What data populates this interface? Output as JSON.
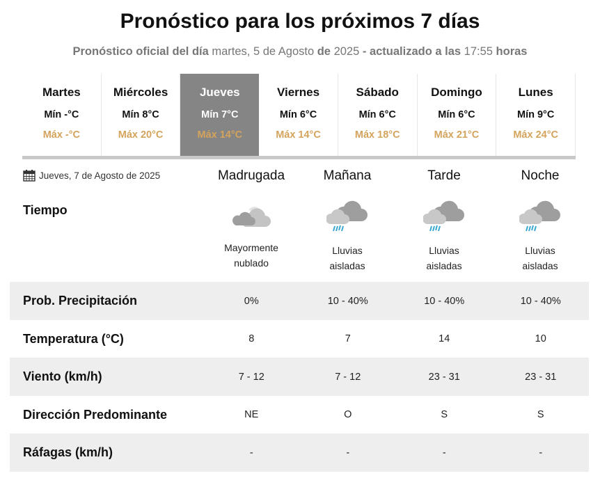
{
  "title": "Pronóstico para los próximos 7 días",
  "subtitle": {
    "p1": "Pronóstico oficial del día",
    "p2": " martes, 5 de Agosto ",
    "p3": "de",
    "p4": " 2025 ",
    "p5": "- actualizado a las",
    "p6": " 17:55 ",
    "p7": "horas"
  },
  "days": [
    {
      "name": "Martes",
      "min": "Mín -°C",
      "max": "Máx -°C"
    },
    {
      "name": "Miércoles",
      "min": "Mín 8°C",
      "max": "Máx 20°C"
    },
    {
      "name": "Jueves",
      "min": "Mín 7°C",
      "max": "Máx 14°C",
      "selected": true
    },
    {
      "name": "Viernes",
      "min": "Mín 6°C",
      "max": "Máx 14°C"
    },
    {
      "name": "Sábado",
      "min": "Mín 6°C",
      "max": "Máx 18°C"
    },
    {
      "name": "Domingo",
      "min": "Mín 6°C",
      "max": "Máx 21°C"
    },
    {
      "name": "Lunes",
      "min": "Mín 9°C",
      "max": "Máx 24°C"
    }
  ],
  "detail": {
    "date": "Jueves, 7 de Agosto de 2025",
    "periods": [
      "Madrugada",
      "Mañana",
      "Tarde",
      "Noche"
    ],
    "tiempo_label": "Tiempo",
    "weather": [
      {
        "icon": "mostly-cloudy-night-icon",
        "desc1": "Mayormente",
        "desc2": "nublado"
      },
      {
        "icon": "isolated-rain-icon",
        "desc1": "Lluvias",
        "desc2": "aisladas"
      },
      {
        "icon": "isolated-rain-icon",
        "desc1": "Lluvias",
        "desc2": "aisladas"
      },
      {
        "icon": "isolated-rain-icon",
        "desc1": "Lluvias",
        "desc2": "aisladas"
      }
    ],
    "rows": [
      {
        "label": "Prob. Precipitación",
        "values": [
          "0%",
          "10 - 40%",
          "10 - 40%",
          "10 - 40%"
        ]
      },
      {
        "label": "Temperatura (°C)",
        "values": [
          "8",
          "7",
          "14",
          "10"
        ]
      },
      {
        "label": "Viento (km/h)",
        "values": [
          "7 - 12",
          "7 - 12",
          "23 - 31",
          "23 - 31"
        ]
      },
      {
        "label": "Dirección Predominante",
        "values": [
          "NE",
          "O",
          "S",
          "S"
        ]
      },
      {
        "label": "Ráfagas (km/h)",
        "values": [
          "-",
          "-",
          "-",
          "-"
        ]
      }
    ]
  },
  "colors": {
    "selected_tab": "#858585",
    "max_temp": "#d4a35c",
    "row_alt": "#eeeeee",
    "rain": "#3aa7d0"
  }
}
